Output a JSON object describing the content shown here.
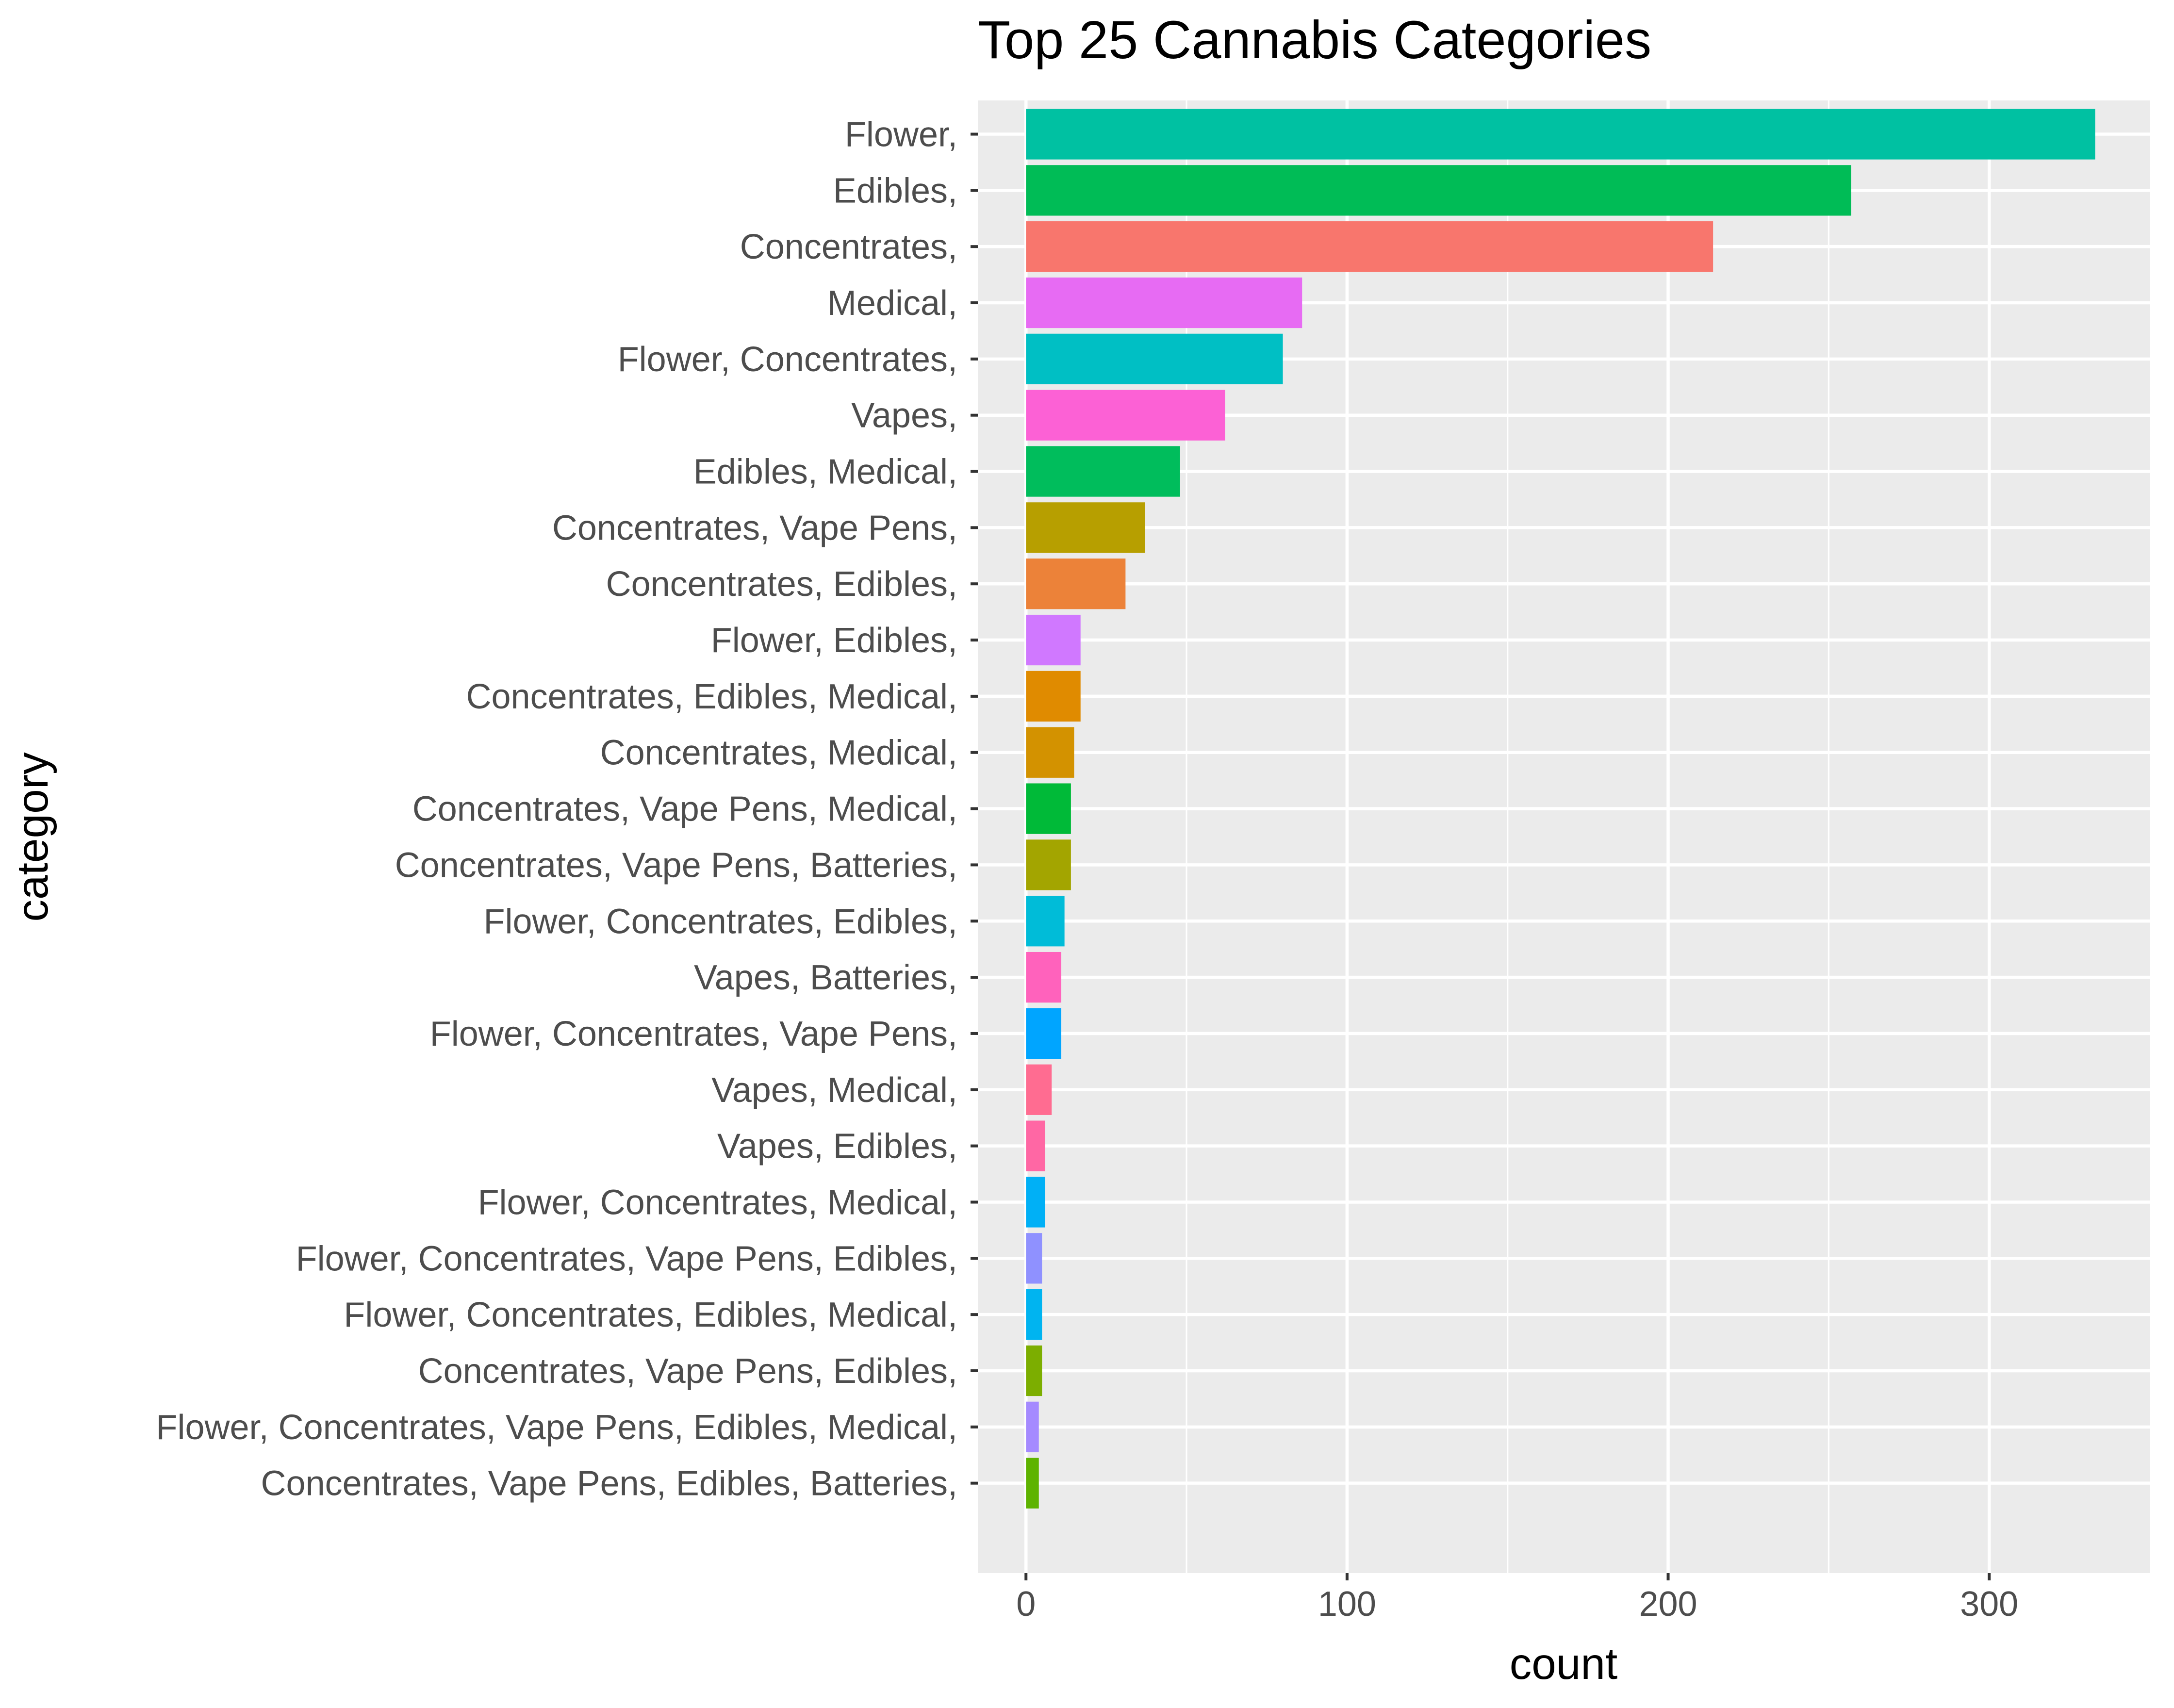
{
  "chart_data": {
    "type": "bar",
    "orientation": "horizontal",
    "title": "Top 25 Cannabis Categories",
    "xlabel": "count",
    "ylabel": "category",
    "xlim": [
      -15,
      350
    ],
    "x_ticks": [
      0,
      100,
      200,
      300
    ],
    "grid": true,
    "legend": "none",
    "categories": [
      "Flower,",
      "Edibles,",
      "Concentrates,",
      "Medical,",
      "Flower, Concentrates,",
      "Vapes,",
      "Edibles, Medical,",
      "Concentrates, Vape Pens,",
      "Concentrates, Edibles,",
      "Flower, Edibles,",
      "Concentrates, Edibles, Medical,",
      "Concentrates, Medical,",
      "Concentrates, Vape Pens, Medical,",
      "Concentrates, Vape Pens, Batteries,",
      "Flower, Concentrates, Edibles,",
      "Vapes, Batteries,",
      "Flower, Concentrates, Vape Pens,",
      "Vapes, Medical,",
      "Vapes, Edibles,",
      "Flower, Concentrates, Medical,",
      "Flower, Concentrates, Vape Pens, Edibles,",
      "Flower, Concentrates, Edibles, Medical,",
      "Concentrates, Vape Pens, Edibles,",
      "Flower, Concentrates, Vape Pens, Edibles, Medical,",
      "Concentrates, Vape Pens, Edibles, Batteries,"
    ],
    "values": [
      333,
      257,
      214,
      86,
      80,
      62,
      48,
      37,
      31,
      17,
      17,
      15,
      14,
      14,
      12,
      11,
      11,
      8,
      6,
      6,
      5,
      5,
      5,
      4,
      4
    ],
    "colors": [
      "#00C1A2",
      "#00BC56",
      "#F8766D",
      "#E76BF3",
      "#00BFC4",
      "#FC61D5",
      "#00BD5C",
      "#B79F00",
      "#EC8239",
      "#D078FF",
      "#E08B00",
      "#D39200",
      "#00BA38",
      "#A3A500",
      "#00BCD8",
      "#FF62BC",
      "#00A5FF",
      "#FF6C91",
      "#FF67A4",
      "#00B0F6",
      "#8F91FF",
      "#00B4F0",
      "#7CAE00",
      "#A58AFF",
      "#5EB300"
    ],
    "panel_color": "#EBEBEB"
  }
}
